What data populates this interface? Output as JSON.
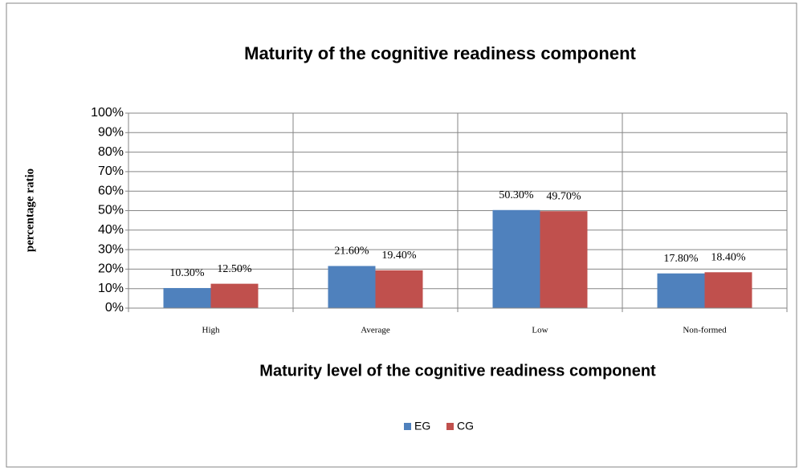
{
  "chart_data": {
    "type": "bar",
    "title": "Maturity of the cognitive readiness component",
    "x_label": "Maturity level of the cognitive readiness component",
    "y_label": "percentage ratio",
    "categories": [
      "High",
      "Average",
      "Low",
      "Non-formed"
    ],
    "series": [
      {
        "name": "EG",
        "color": "#4f81bd",
        "values": [
          10.3,
          21.6,
          50.3,
          17.8
        ],
        "value_labels": [
          "10.30%",
          "21.60%",
          "50.30%",
          "17.80%"
        ]
      },
      {
        "name": "CG",
        "color": "#c0504d",
        "values": [
          12.5,
          19.4,
          49.7,
          18.4
        ],
        "value_labels": [
          "12.50%",
          "19.40%",
          "49.70%",
          "18.40%"
        ]
      }
    ],
    "ylim": [
      0,
      100
    ],
    "yticks": [
      {
        "value": 0,
        "label": "0%"
      },
      {
        "value": 10,
        "label": "10%"
      },
      {
        "value": 20,
        "label": "20%"
      },
      {
        "value": 30,
        "label": "30%"
      },
      {
        "value": 40,
        "label": "40%"
      },
      {
        "value": 50,
        "label": "50%"
      },
      {
        "value": 60,
        "label": "60%"
      },
      {
        "value": 70,
        "label": "70%"
      },
      {
        "value": 80,
        "label": "80%"
      },
      {
        "value": 90,
        "label": "90%"
      },
      {
        "value": 100,
        "label": "100%"
      }
    ],
    "grid": true,
    "legend": "bottom"
  }
}
